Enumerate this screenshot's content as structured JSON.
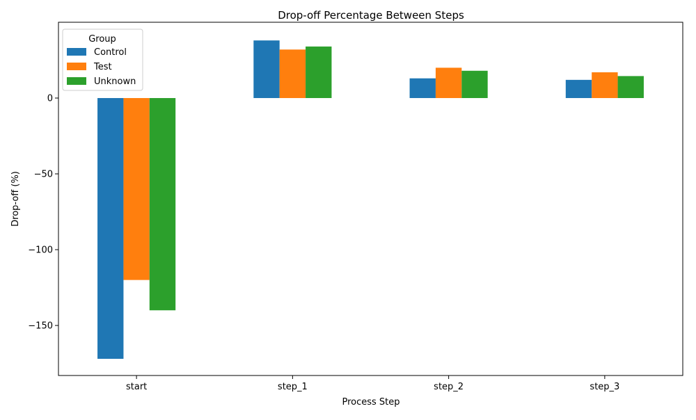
{
  "chart_data": {
    "type": "bar",
    "title": "Drop-off Percentage Between Steps",
    "xlabel": "Process Step",
    "ylabel": "Drop-off (%)",
    "categories": [
      "start",
      "step_1",
      "step_2",
      "step_3"
    ],
    "series": [
      {
        "name": "Control",
        "color": "#1f77b4",
        "values": [
          -172,
          38,
          13,
          12
        ]
      },
      {
        "name": "Test",
        "color": "#ff7f0e",
        "values": [
          -120,
          32,
          20,
          17
        ]
      },
      {
        "name": "Unknown",
        "color": "#2ca02c",
        "values": [
          -140,
          34,
          18,
          14.5
        ]
      }
    ],
    "ylim": [
      -183,
      50
    ],
    "yticks": [
      0,
      -50,
      -100,
      -150
    ],
    "grid": false,
    "legend": {
      "title": "Group",
      "placement": "top-left"
    }
  }
}
